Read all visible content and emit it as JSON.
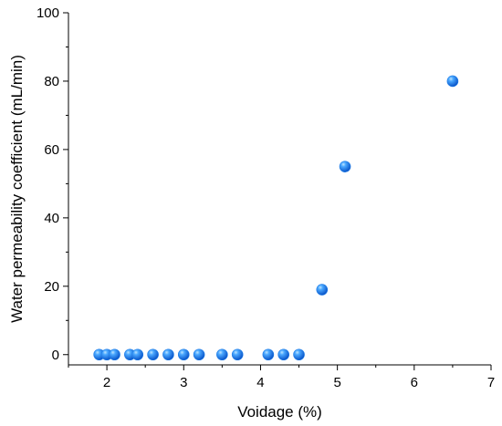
{
  "chart_data": {
    "type": "scatter",
    "title": "",
    "xlabel": "Voidage (%)",
    "ylabel": "Water permeability coefficient (mL/min)",
    "xlim": [
      1.5,
      7
    ],
    "ylim": [
      -3,
      100
    ],
    "xticks": [
      2,
      3,
      4,
      5,
      6,
      7
    ],
    "yticks": [
      0,
      20,
      40,
      60,
      80,
      100
    ],
    "grid": false,
    "legend": "none",
    "marker_color": "#1f7ee8",
    "series": [
      {
        "points": [
          {
            "x": 1.9,
            "y": 0
          },
          {
            "x": 2.0,
            "y": 0
          },
          {
            "x": 2.1,
            "y": 0
          },
          {
            "x": 2.3,
            "y": 0
          },
          {
            "x": 2.4,
            "y": 0
          },
          {
            "x": 2.6,
            "y": 0
          },
          {
            "x": 2.8,
            "y": 0
          },
          {
            "x": 3.0,
            "y": 0
          },
          {
            "x": 3.2,
            "y": 0
          },
          {
            "x": 3.5,
            "y": 0
          },
          {
            "x": 3.7,
            "y": 0
          },
          {
            "x": 4.1,
            "y": 0
          },
          {
            "x": 4.3,
            "y": 0
          },
          {
            "x": 4.5,
            "y": 0
          },
          {
            "x": 4.8,
            "y": 19
          },
          {
            "x": 5.1,
            "y": 55
          },
          {
            "x": 6.5,
            "y": 80
          }
        ]
      }
    ]
  }
}
